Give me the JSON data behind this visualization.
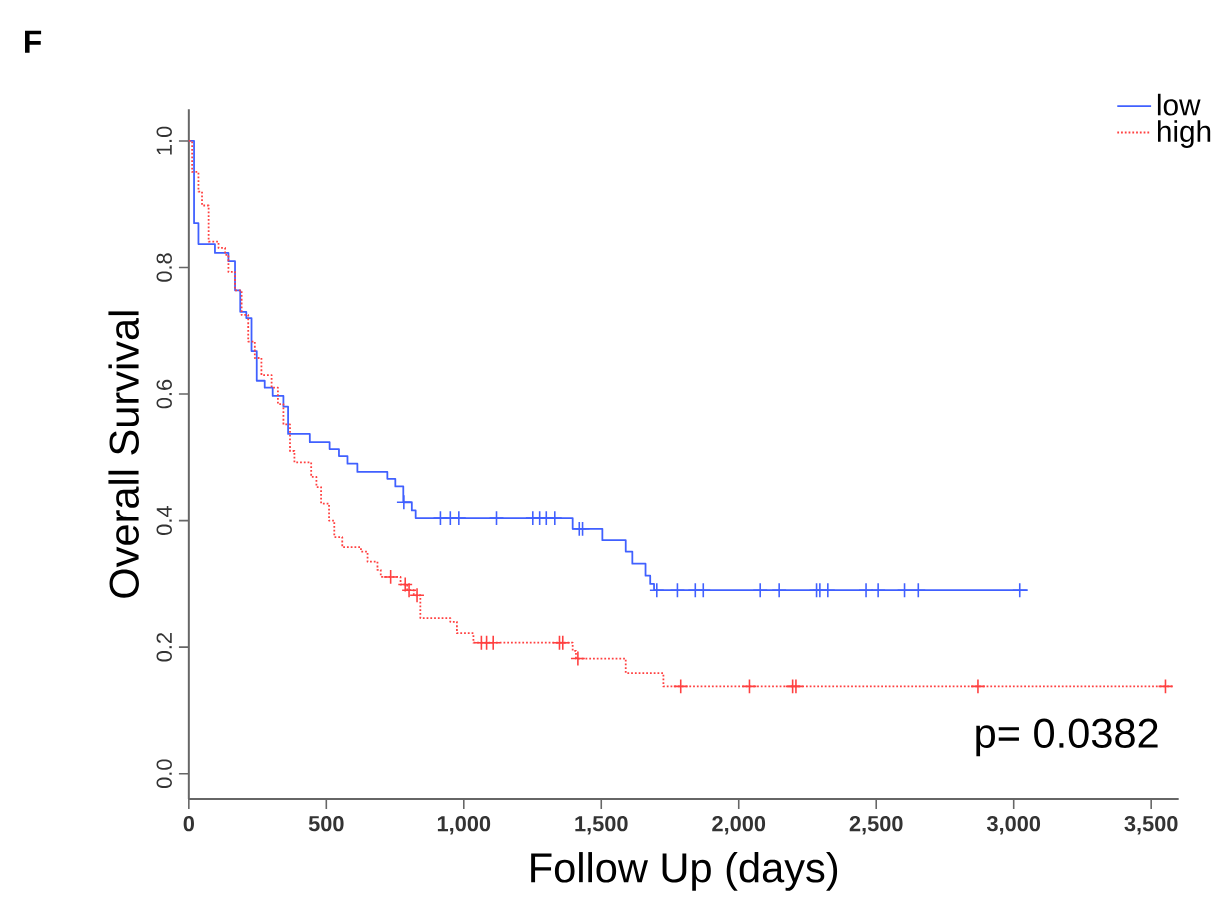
{
  "chart_data": {
    "type": "step",
    "xlabel": "Follow Up  (days)",
    "ylabel": "Overall Survival",
    "annotations": [
      "F",
      "p= 0.0382"
    ],
    "xlim": [
      0,
      3600
    ],
    "ylim": [
      -0.04,
      1.05
    ],
    "xticks": [
      0,
      500,
      {
        "value": 1000,
        "label": "1,000"
      },
      {
        "value": 1500,
        "label": "1,500"
      },
      {
        "value": 2000,
        "label": "2,000"
      },
      {
        "value": 2500,
        "label": "2,500"
      },
      {
        "value": 3000,
        "label": "3,000"
      },
      {
        "value": 3500,
        "label": "3,500"
      }
    ],
    "yticks": [
      {
        "value": 0,
        "label": "0.0"
      },
      0.2,
      0.4,
      0.6,
      0.8,
      {
        "value": 1,
        "label": "1.0"
      }
    ],
    "legend": "top right",
    "series": [
      {
        "name": "low",
        "color": "#4060ff",
        "line_style": "solid",
        "x": [
          0,
          19,
          35,
          95,
          144,
          168,
          187,
          209,
          228,
          247,
          276,
          305,
          344,
          361,
          440,
          512,
          546,
          577,
          613,
          722,
          751,
          780,
          811,
          825,
          1396,
          1504,
          1589,
          1613,
          1661,
          1678,
          1692,
          3051
        ],
        "values": [
          1.0,
          0.87,
          0.837,
          0.823,
          0.81,
          0.764,
          0.73,
          0.72,
          0.668,
          0.621,
          0.61,
          0.597,
          0.58,
          0.537,
          0.524,
          0.513,
          0.502,
          0.49,
          0.477,
          0.466,
          0.454,
          0.429,
          0.416,
          0.404,
          0.387,
          0.369,
          0.351,
          0.332,
          0.313,
          0.3,
          0.29,
          0.29
        ]
      },
      {
        "name": "high",
        "color": "#ff4040",
        "line_style": "dotted",
        "x": [
          0,
          12,
          35,
          48,
          72,
          108,
          132,
          144,
          168,
          192,
          216,
          240,
          264,
          301,
          324,
          344,
          368,
          384,
          445,
          464,
          481,
          510,
          529,
          558,
          626,
          650,
          686,
          698,
          770,
          794,
          818,
          842,
          951,
          975,
          1035,
          1396,
          1408,
          1589,
          1726,
          3585
        ],
        "values": [
          1.0,
          0.951,
          0.92,
          0.898,
          0.841,
          0.831,
          0.82,
          0.793,
          0.764,
          0.725,
          0.683,
          0.657,
          0.63,
          0.61,
          0.584,
          0.552,
          0.51,
          0.492,
          0.469,
          0.453,
          0.427,
          0.4,
          0.374,
          0.358,
          0.351,
          0.335,
          0.322,
          0.311,
          0.299,
          0.29,
          0.282,
          0.246,
          0.24,
          0.222,
          0.207,
          0.194,
          0.182,
          0.159,
          0.138,
          0.138
        ]
      },
      {
        "type": "scatter",
        "marker": "cross",
        "color": "#4060ff",
        "x": [
          782,
          915,
          951,
          982,
          1119,
          1251,
          1276,
          1300,
          1331,
          1420,
          1432,
          1702,
          1777,
          1842,
          1871,
          2078,
          2147,
          2283,
          2295,
          2324,
          2463,
          2507,
          2603,
          2653,
          3022
        ],
        "values": [
          0.429,
          0.404,
          0.404,
          0.404,
          0.404,
          0.404,
          0.404,
          0.404,
          0.404,
          0.387,
          0.387,
          0.29,
          0.29,
          0.29,
          0.29,
          0.29,
          0.29,
          0.29,
          0.29,
          0.29,
          0.29,
          0.29,
          0.29,
          0.29,
          0.29
        ]
      },
      {
        "type": "scatter",
        "marker": "cross",
        "color": "#ff4040",
        "x": [
          734,
          787,
          801,
          830,
          1064,
          1083,
          1107,
          1348,
          1360,
          1415,
          1789,
          2039,
          2196,
          2208,
          2870,
          3552
        ],
        "values": [
          0.311,
          0.299,
          0.29,
          0.282,
          0.207,
          0.207,
          0.207,
          0.207,
          0.207,
          0.182,
          0.138,
          0.138,
          0.138,
          0.138,
          0.138,
          0.138
        ]
      }
    ]
  }
}
